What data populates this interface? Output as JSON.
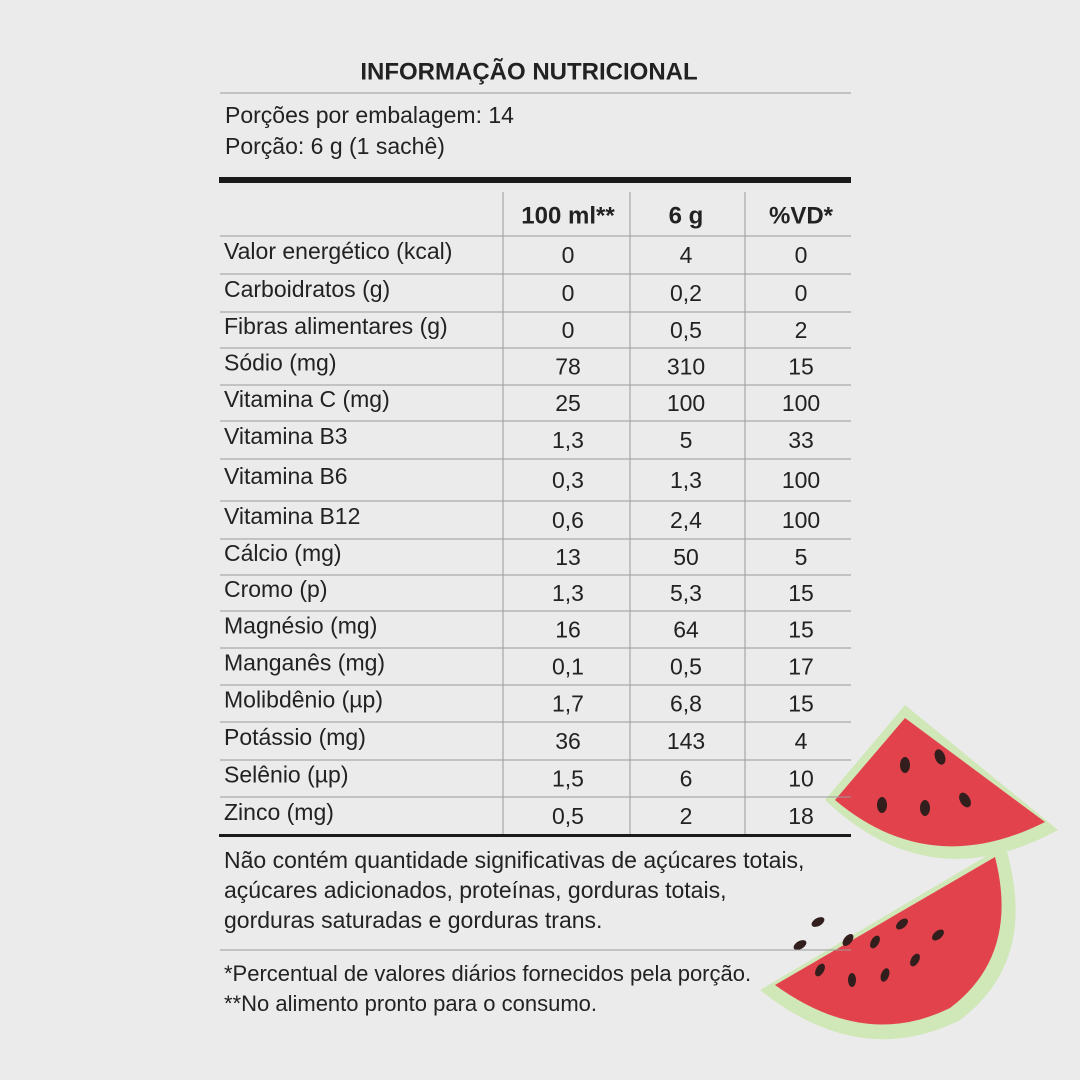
{
  "title": "INFORMAÇÃO NUTRICIONAL",
  "servings": [
    "Porções por embalagem: 14",
    "Porção: 6 g (1 sachê)"
  ],
  "table": {
    "header": [
      "100 ml**",
      "6 g",
      "%VD*"
    ],
    "rows": [
      [
        "Valor energético (kcal)",
        "0",
        "4",
        "0"
      ],
      [
        "Carboidratos (g)",
        "0",
        "0,2",
        "0"
      ],
      [
        "Fibras alimentares (g)",
        "0",
        "0,5",
        "2"
      ],
      [
        "Sódio (mg)",
        "78",
        "310",
        "15"
      ],
      [
        "Vitamina C (mg)",
        "25",
        "100",
        "100"
      ],
      [
        "Vitamina B3",
        "1,3",
        "5",
        "33"
      ],
      [
        "Vitamina B6",
        "0,3",
        "1,3",
        "100"
      ],
      [
        "Vitamina B12",
        "0,6",
        "2,4",
        "100"
      ],
      [
        "Cálcio (mg)",
        "13",
        "50",
        "5"
      ],
      [
        "Cromo (p)",
        "1,3",
        "5,3",
        "15"
      ],
      [
        "Magnésio (mg)",
        "16",
        "64",
        "15"
      ],
      [
        "Manganês (mg)",
        "0,1",
        "0,5",
        "17"
      ],
      [
        "Molibdênio (µp)",
        "1,7",
        "6,8",
        "15"
      ],
      [
        "Potássio (mg)",
        "36",
        "143",
        "4"
      ],
      [
        "Selênio (µp)",
        "1,5",
        "6",
        "10"
      ],
      [
        "Zinco (mg)",
        "0,5",
        "2",
        "18"
      ]
    ]
  },
  "statement": [
    "Não contém quantidade significativas de açúcares totais,",
    "açúcares adicionados, proteínas, gorduras totais,",
    "gorduras saturadas e gorduras trans."
  ],
  "notes": [
    "*Percentual de valores diários fornecidos pela porção.",
    "**No alimento pronto para o consumo."
  ]
}
